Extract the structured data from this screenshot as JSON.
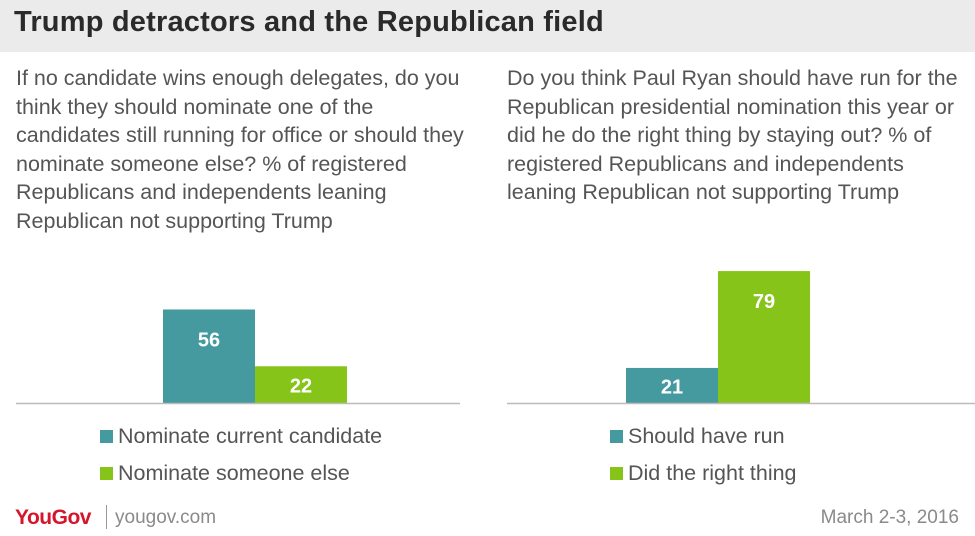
{
  "title": "Trump detractors and the Republican field",
  "footer": {
    "logo": "YouGov",
    "site": "yougov.com",
    "date": "March 2-3, 2016"
  },
  "colors": {
    "teal": "#449a9e",
    "green": "#86c41a",
    "axis": "#bbbbbb",
    "title_bg": "#ebebeb",
    "logo_red": "#d5152b"
  },
  "chart_data": [
    {
      "type": "bar",
      "question": "If no candidate wins enough delegates, do you think they should nominate one of the candidates still running for office or should they nominate someone else? % of registered Republicans and independents leaning Republican not supporting Trump",
      "series": [
        {
          "name": "Nominate current candidate",
          "color": "#449a9e",
          "value": 56
        },
        {
          "name": "Nominate someone else",
          "color": "#86c41a",
          "value": 22
        }
      ],
      "legend_position": "bottom"
    },
    {
      "type": "bar",
      "question": "Do you think Paul Ryan should have run for the Republican presidential nomination this year or did he do the right thing by staying out? % of registered Republicans and independents leaning Republican not supporting Trump",
      "series": [
        {
          "name": "Should have run",
          "color": "#449a9e",
          "value": 21
        },
        {
          "name": "Did the right thing",
          "color": "#86c41a",
          "value": 79
        }
      ],
      "legend_position": "bottom"
    }
  ]
}
